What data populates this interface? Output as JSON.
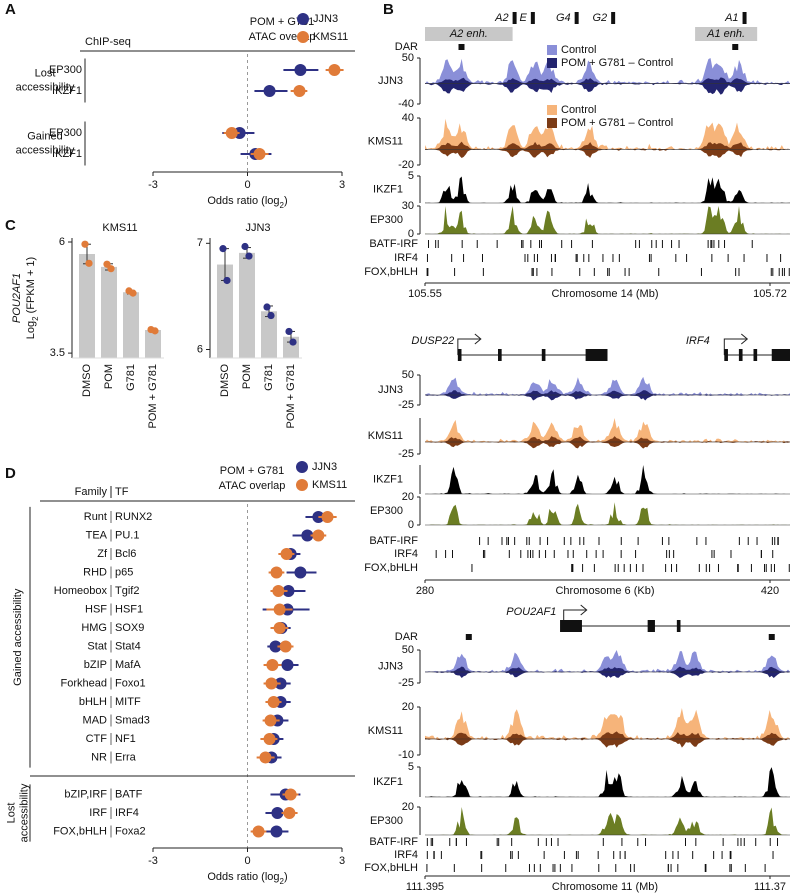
{
  "chart_data": [
    {
      "type": "forest",
      "panel": "A",
      "column_header": [
        "ChIP-seq"
      ],
      "legend_title": [
        "POM + G781",
        "ATAC overlap"
      ],
      "xlim": [
        -3,
        3
      ],
      "xticks": [
        -3,
        0,
        3
      ],
      "xlabel": [
        "Odds ratio (log",
        "2",
        ")"
      ],
      "groups": [
        {
          "label": [
            "Lost",
            "accessibility"
          ],
          "categories": [
            "EP300",
            "IKZF1"
          ]
        },
        {
          "label": [
            "Gained",
            "accessibility"
          ],
          "categories": [
            "EP300",
            "IKZF1"
          ]
        }
      ],
      "series": [
        {
          "name": "JJN3",
          "color": "#2e3184",
          "values": [
            1.68,
            0.7,
            -0.25,
            0.25
          ],
          "lo": [
            1.14,
            0.22,
            -0.8,
            -0.22
          ],
          "hi": [
            2.25,
            1.27,
            0.22,
            0.76
          ]
        },
        {
          "name": "KMS11",
          "color": "#e07b39",
          "values": [
            2.76,
            1.65,
            -0.5,
            0.38
          ],
          "lo": [
            2.48,
            1.37,
            -0.76,
            0.1
          ],
          "hi": [
            3.05,
            1.9,
            -0.25,
            0.67
          ]
        }
      ]
    },
    {
      "type": "bar",
      "panel": "C",
      "title": "KMS11",
      "ylabel_gene": "POU2AF1",
      "ylabel": [
        "Log",
        "2",
        " (FPKM + 1)"
      ],
      "categories": [
        "DMSO",
        "POM",
        "G781",
        "POM + G781"
      ],
      "values": [
        5.73,
        5.44,
        4.87,
        4.02
      ],
      "errors": [
        0.22,
        0.07,
        0.04,
        0.03
      ],
      "replicates": [
        [
          5.95,
          5.52
        ],
        [
          5.5,
          5.4
        ],
        [
          4.9,
          4.85
        ],
        [
          4.03,
          4.0
        ]
      ],
      "color": "#c8c8c8",
      "dot_color": "#e07b39",
      "ylim": [
        3.39,
        6.09
      ],
      "yticks": [
        3.5,
        6
      ]
    },
    {
      "type": "bar",
      "title": "JJN3",
      "categories": [
        "DMSO",
        "POM",
        "G781",
        "POM + G781"
      ],
      "values": [
        6.8,
        6.91,
        6.36,
        6.12
      ],
      "errors": [
        0.15,
        0.05,
        0.05,
        0.05
      ],
      "replicates": [
        [
          6.95,
          6.65
        ],
        [
          6.97,
          6.88
        ],
        [
          6.4,
          6.32
        ],
        [
          6.17,
          6.07
        ]
      ],
      "color": "#c8c8c8",
      "dot_color": "#2e3184",
      "ylim": [
        5.92,
        7.05
      ],
      "yticks": [
        6,
        7
      ]
    },
    {
      "type": "forest",
      "panel": "D",
      "column_header": [
        "Family",
        "TF"
      ],
      "legend_title": [
        "POM + G781",
        "ATAC overlap"
      ],
      "xlim": [
        -3,
        3
      ],
      "xticks": [
        -3,
        0,
        3
      ],
      "xlabel": [
        "Odds ratio (log",
        "2",
        ")"
      ],
      "groups": [
        {
          "label": [
            "Gained accessibility"
          ],
          "families": [
            "Runt",
            "TEA",
            "Zf",
            "RHD",
            "Homeobox",
            "HSF",
            "HMG",
            "Stat",
            "bZIP",
            "Forkhead",
            "bHLH",
            "MAD",
            "CTF",
            "NR"
          ],
          "categories": [
            "RUNX2",
            "PU.1",
            "Bcl6",
            "p65",
            "Tgif2",
            "HSF1",
            "SOX9",
            "Stat4",
            "MafA",
            "Foxo1",
            "MITF",
            "Smad3",
            "NF1",
            "Erra"
          ]
        },
        {
          "label": [
            "Lost",
            "accessibility"
          ],
          "families": [
            "bZIP,IRF",
            "IRF",
            "FOX,bHLH"
          ],
          "categories": [
            "BATF",
            "IRF4",
            "Foxa2"
          ]
        }
      ],
      "series": [
        {
          "name": "JJN3",
          "color": "#2e3184",
          "values": [
            2.25,
            1.9,
            1.37,
            1.68,
            1.3,
            1.27,
            1.08,
            0.89,
            1.27,
            1.05,
            1.05,
            0.95,
            0.83,
            0.76,
            1.21,
            0.95,
            0.92
          ],
          "lo": [
            1.84,
            1.43,
            1.05,
            1.24,
            0.79,
            0.48,
            0.79,
            0.63,
            0.95,
            0.73,
            0.73,
            0.67,
            0.51,
            0.48,
            0.73,
            0.57,
            0.57
          ],
          "hi": [
            2.73,
            2.41,
            1.68,
            2.19,
            1.84,
            1.97,
            1.37,
            1.14,
            1.62,
            1.37,
            1.37,
            1.3,
            1.14,
            1.08,
            1.68,
            1.33,
            1.3
          ]
        },
        {
          "name": "KMS11",
          "color": "#e07b39",
          "values": [
            2.54,
            2.25,
            1.24,
            0.92,
            0.98,
            1.02,
            1.02,
            1.21,
            0.79,
            0.76,
            0.83,
            0.73,
            0.7,
            0.57,
            1.37,
            1.33,
            0.35
          ],
          "lo": [
            2.25,
            2.0,
            0.98,
            0.67,
            0.73,
            0.6,
            0.73,
            0.95,
            0.51,
            0.51,
            0.57,
            0.48,
            0.41,
            0.29,
            1.11,
            1.08,
            0.1
          ],
          "hi": [
            2.83,
            2.5,
            1.49,
            1.17,
            1.27,
            1.43,
            1.3,
            1.46,
            1.08,
            1.05,
            1.08,
            1.02,
            0.95,
            0.86,
            1.62,
            1.59,
            0.6
          ]
        }
      ]
    },
    {
      "type": "tracks",
      "panel": "B",
      "xlim": [
        105.55,
        105.72
      ],
      "xticks": [
        105.55,
        105.72
      ],
      "xlabel": "Chromosome 14 (Mb)",
      "genes": [
        "A2",
        "E",
        "G4",
        "G2",
        "A1"
      ],
      "enhancers": [
        "A2 enh.",
        "A1 enh."
      ],
      "dar_label": "DAR",
      "tracks": [
        {
          "name": "JJN3",
          "ylim": [
            -40,
            50
          ],
          "yticks": [
            -40,
            50
          ],
          "colors": [
            "#8a8fd8",
            "#23246e"
          ],
          "legend": [
            "Control",
            "POM + G781 – Control"
          ]
        },
        {
          "name": "KMS11",
          "ylim": [
            -20,
            40
          ],
          "yticks": [
            -20,
            40
          ],
          "colors": [
            "#f6b47a",
            "#7b3b16"
          ],
          "legend": [
            "Control",
            "POM + G781 – Control"
          ]
        },
        {
          "name": "IKZF1",
          "ylim": [
            0,
            5
          ],
          "yticks": [
            5
          ],
          "colors": [
            "#000000"
          ]
        },
        {
          "name": "EP300",
          "ylim": [
            0,
            30
          ],
          "yticks": [
            0,
            30
          ],
          "colors": [
            "#6b7d23"
          ]
        }
      ],
      "motifs": [
        "BATF-IRF",
        "IRF4",
        "FOX,bHLH"
      ]
    },
    {
      "type": "tracks",
      "xlim": [
        280,
        420
      ],
      "xticks": [
        280,
        420
      ],
      "xlabel": "Chromosome 6 (Kb)",
      "genes": [
        "DUSP22",
        "IRF4"
      ],
      "tracks": [
        {
          "name": "JJN3",
          "ylim": [
            -25,
            50
          ],
          "yticks": [
            -25,
            50
          ],
          "colors": [
            "#8a8fd8",
            "#23246e"
          ]
        },
        {
          "name": "KMS11",
          "ylim": [
            -25,
            50
          ],
          "yticks": [
            -25
          ],
          "colors": [
            "#f6b47a",
            "#7b3b16"
          ]
        },
        {
          "name": "IKZF1",
          "ylim": [
            0,
            20
          ],
          "yticks": [],
          "colors": [
            "#000000"
          ]
        },
        {
          "name": "EP300",
          "ylim": [
            0,
            20
          ],
          "yticks": [
            0,
            20
          ],
          "colors": [
            "#6b7d23"
          ]
        }
      ],
      "motifs": [
        "BATF-IRF",
        "IRF4",
        "FOX,bHLH"
      ]
    },
    {
      "type": "tracks",
      "xlim": [
        111.395,
        111.37
      ],
      "xticks": [
        111.395,
        111.37
      ],
      "xlabel": "Chromosome 11 (Mb)",
      "genes": [
        "POU2AF1"
      ],
      "dar_label": "DAR",
      "tracks": [
        {
          "name": "JJN3",
          "ylim": [
            -25,
            50
          ],
          "yticks": [
            -25,
            50
          ],
          "colors": [
            "#8a8fd8",
            "#23246e"
          ]
        },
        {
          "name": "KMS11",
          "ylim": [
            -10,
            20
          ],
          "yticks": [
            -10,
            20
          ],
          "colors": [
            "#f6b47a",
            "#7b3b16"
          ]
        },
        {
          "name": "IKZF1",
          "ylim": [
            0,
            5
          ],
          "yticks": [
            5
          ],
          "colors": [
            "#000000"
          ]
        },
        {
          "name": "EP300",
          "ylim": [
            0,
            20
          ],
          "yticks": [
            20
          ],
          "colors": [
            "#6b7d23"
          ]
        }
      ],
      "motifs": [
        "BATF-IRF",
        "IRF4",
        "FOX,bHLH"
      ]
    }
  ]
}
